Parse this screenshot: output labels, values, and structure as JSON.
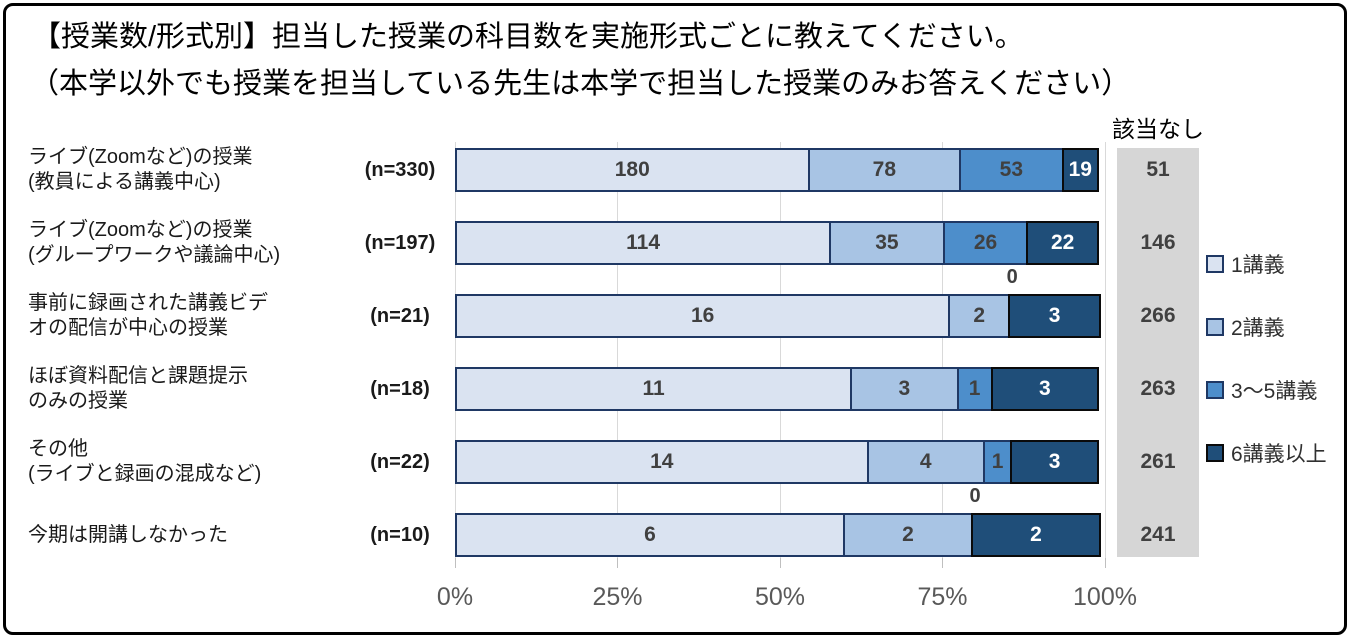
{
  "title": "【授業数/形式別】担当した授業の科目数を実施形式ごとに教えてください。",
  "subtitle": "（本学以外でも授業を担当している先生は本学で担当した授業のみお答えください）",
  "na_column": {
    "header": "該当なし",
    "values": [
      51,
      146,
      266,
      263,
      261,
      241
    ]
  },
  "chart_data": {
    "type": "bar",
    "subtype": "100%-stacked-horizontal",
    "title": "【授業数/形式別】担当した授業の科目数を実施形式ごとに教えてください。",
    "categories": [
      "ライブ(Zoomなど)の授業(教員による講義中心)",
      "ライブ(Zoomなど)の授業(グループワークや議論中心)",
      "事前に録画された講義ビデオの配信が中心の授業",
      "ほぼ資料配信と課題提示のみの授業",
      "その他(ライブと録画の混成など)",
      "今期は開講しなかった"
    ],
    "category_lines": [
      [
        "ライブ(Zoomなど)の授業",
        "(教員による講義中心)"
      ],
      [
        "ライブ(Zoomなど)の授業",
        "(グループワークや議論中心)"
      ],
      [
        "事前に録画された講義ビデ",
        "オの配信が中心の授業"
      ],
      [
        "ほぼ資料配信と課題提示",
        "のみの授業"
      ],
      [
        "その他",
        "(ライブと録画の混成など)"
      ],
      [
        "今期は開講しなかった"
      ]
    ],
    "n_labels": [
      "(n=330)",
      "(n=197)",
      "(n=21)",
      "(n=18)",
      "(n=22)",
      "(n=10)"
    ],
    "n": [
      330,
      197,
      21,
      18,
      22,
      10
    ],
    "series": [
      {
        "name": "1講義",
        "color": "#dae3f1",
        "border": "#1f3864",
        "text_color": "#404040",
        "values": [
          180,
          114,
          16,
          11,
          14,
          6
        ]
      },
      {
        "name": "2講義",
        "color": "#a8c4e4",
        "border": "#1f3864",
        "text_color": "#404040",
        "values": [
          78,
          35,
          2,
          3,
          4,
          2
        ]
      },
      {
        "name": "3〜5講義",
        "color": "#4d8ecb",
        "border": "#1f3864",
        "text_color": "#404040",
        "values": [
          53,
          26,
          0,
          1,
          1,
          0
        ]
      },
      {
        "name": "6講義以上",
        "color": "#1f4e79",
        "border": "#0a0a0a",
        "text_color": "#ffffff",
        "values": [
          19,
          22,
          3,
          3,
          3,
          2
        ]
      }
    ],
    "na_series": {
      "name": "該当なし",
      "values": [
        51,
        146,
        266,
        263,
        261,
        241
      ]
    },
    "x_ticks": [
      "0%",
      "25%",
      "50%",
      "75%",
      "100%"
    ],
    "xlim": [
      0,
      100
    ],
    "zero_labels_above_bar": true,
    "legend_position": "right",
    "gridlines": true
  },
  "colors": {
    "grid": "#d9d9d9",
    "na_column_bg": "#d6d6d6",
    "axis_tick": "#bfbfbf",
    "axis_label_text": "#595959",
    "value_label_text": "#404040",
    "frame_border": "#000000"
  }
}
